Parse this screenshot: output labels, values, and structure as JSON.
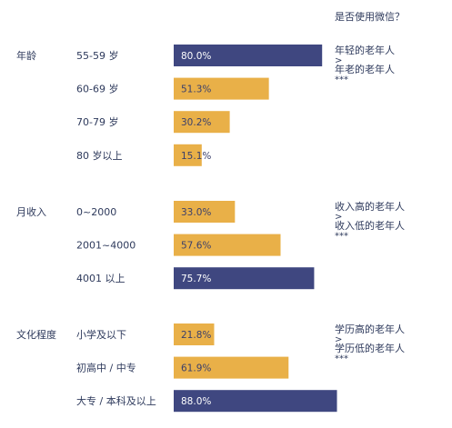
{
  "chart_data": {
    "type": "bar",
    "title": "",
    "xlabel": "",
    "ylabel": "",
    "xlim": [
      0,
      100
    ],
    "value_suffix": "%",
    "header_label": "是否使用微信？",
    "colors": {
      "dark": "#3f4780",
      "light": "#e9b048",
      "text": "#2e3a5c",
      "bar_text": "#3a3f6b"
    },
    "groups": [
      {
        "name": "年龄",
        "annotation": [
          "年轻的老年人",
          ">",
          "年老的老年人",
          "***"
        ],
        "bars": [
          {
            "label": "55-59 岁",
            "value": 80.0,
            "value_label": "80.0%",
            "tone": "dark"
          },
          {
            "label": "60-69 岁",
            "value": 51.3,
            "value_label": "51.3%",
            "tone": "light"
          },
          {
            "label": "70-79 岁",
            "value": 30.2,
            "value_label": "30.2%",
            "tone": "light"
          },
          {
            "label": "80 岁以上",
            "value": 15.1,
            "value_label": "15.1%",
            "tone": "light"
          }
        ]
      },
      {
        "name": "月收入",
        "annotation": [
          "收入高的老年人",
          ">",
          "收入低的老年人",
          "***"
        ],
        "bars": [
          {
            "label": "0~2000",
            "value": 33.0,
            "value_label": "33.0%",
            "tone": "light"
          },
          {
            "label": "2001~4000",
            "value": 57.6,
            "value_label": "57.6%",
            "tone": "light"
          },
          {
            "label": "4001 以上",
            "value": 75.7,
            "value_label": "75.7%",
            "tone": "dark"
          }
        ]
      },
      {
        "name": "文化程度",
        "annotation": [
          "学历高的老年人",
          ">",
          "学历低的老年人",
          "***"
        ],
        "bars": [
          {
            "label": "小学及以下",
            "value": 21.8,
            "value_label": "21.8%",
            "tone": "light"
          },
          {
            "label": "初高中 / 中专",
            "value": 61.9,
            "value_label": "61.9%",
            "tone": "light"
          },
          {
            "label": "大专 / 本科及以上",
            "value": 88.0,
            "value_label": "88.0%",
            "tone": "dark"
          }
        ]
      }
    ]
  }
}
